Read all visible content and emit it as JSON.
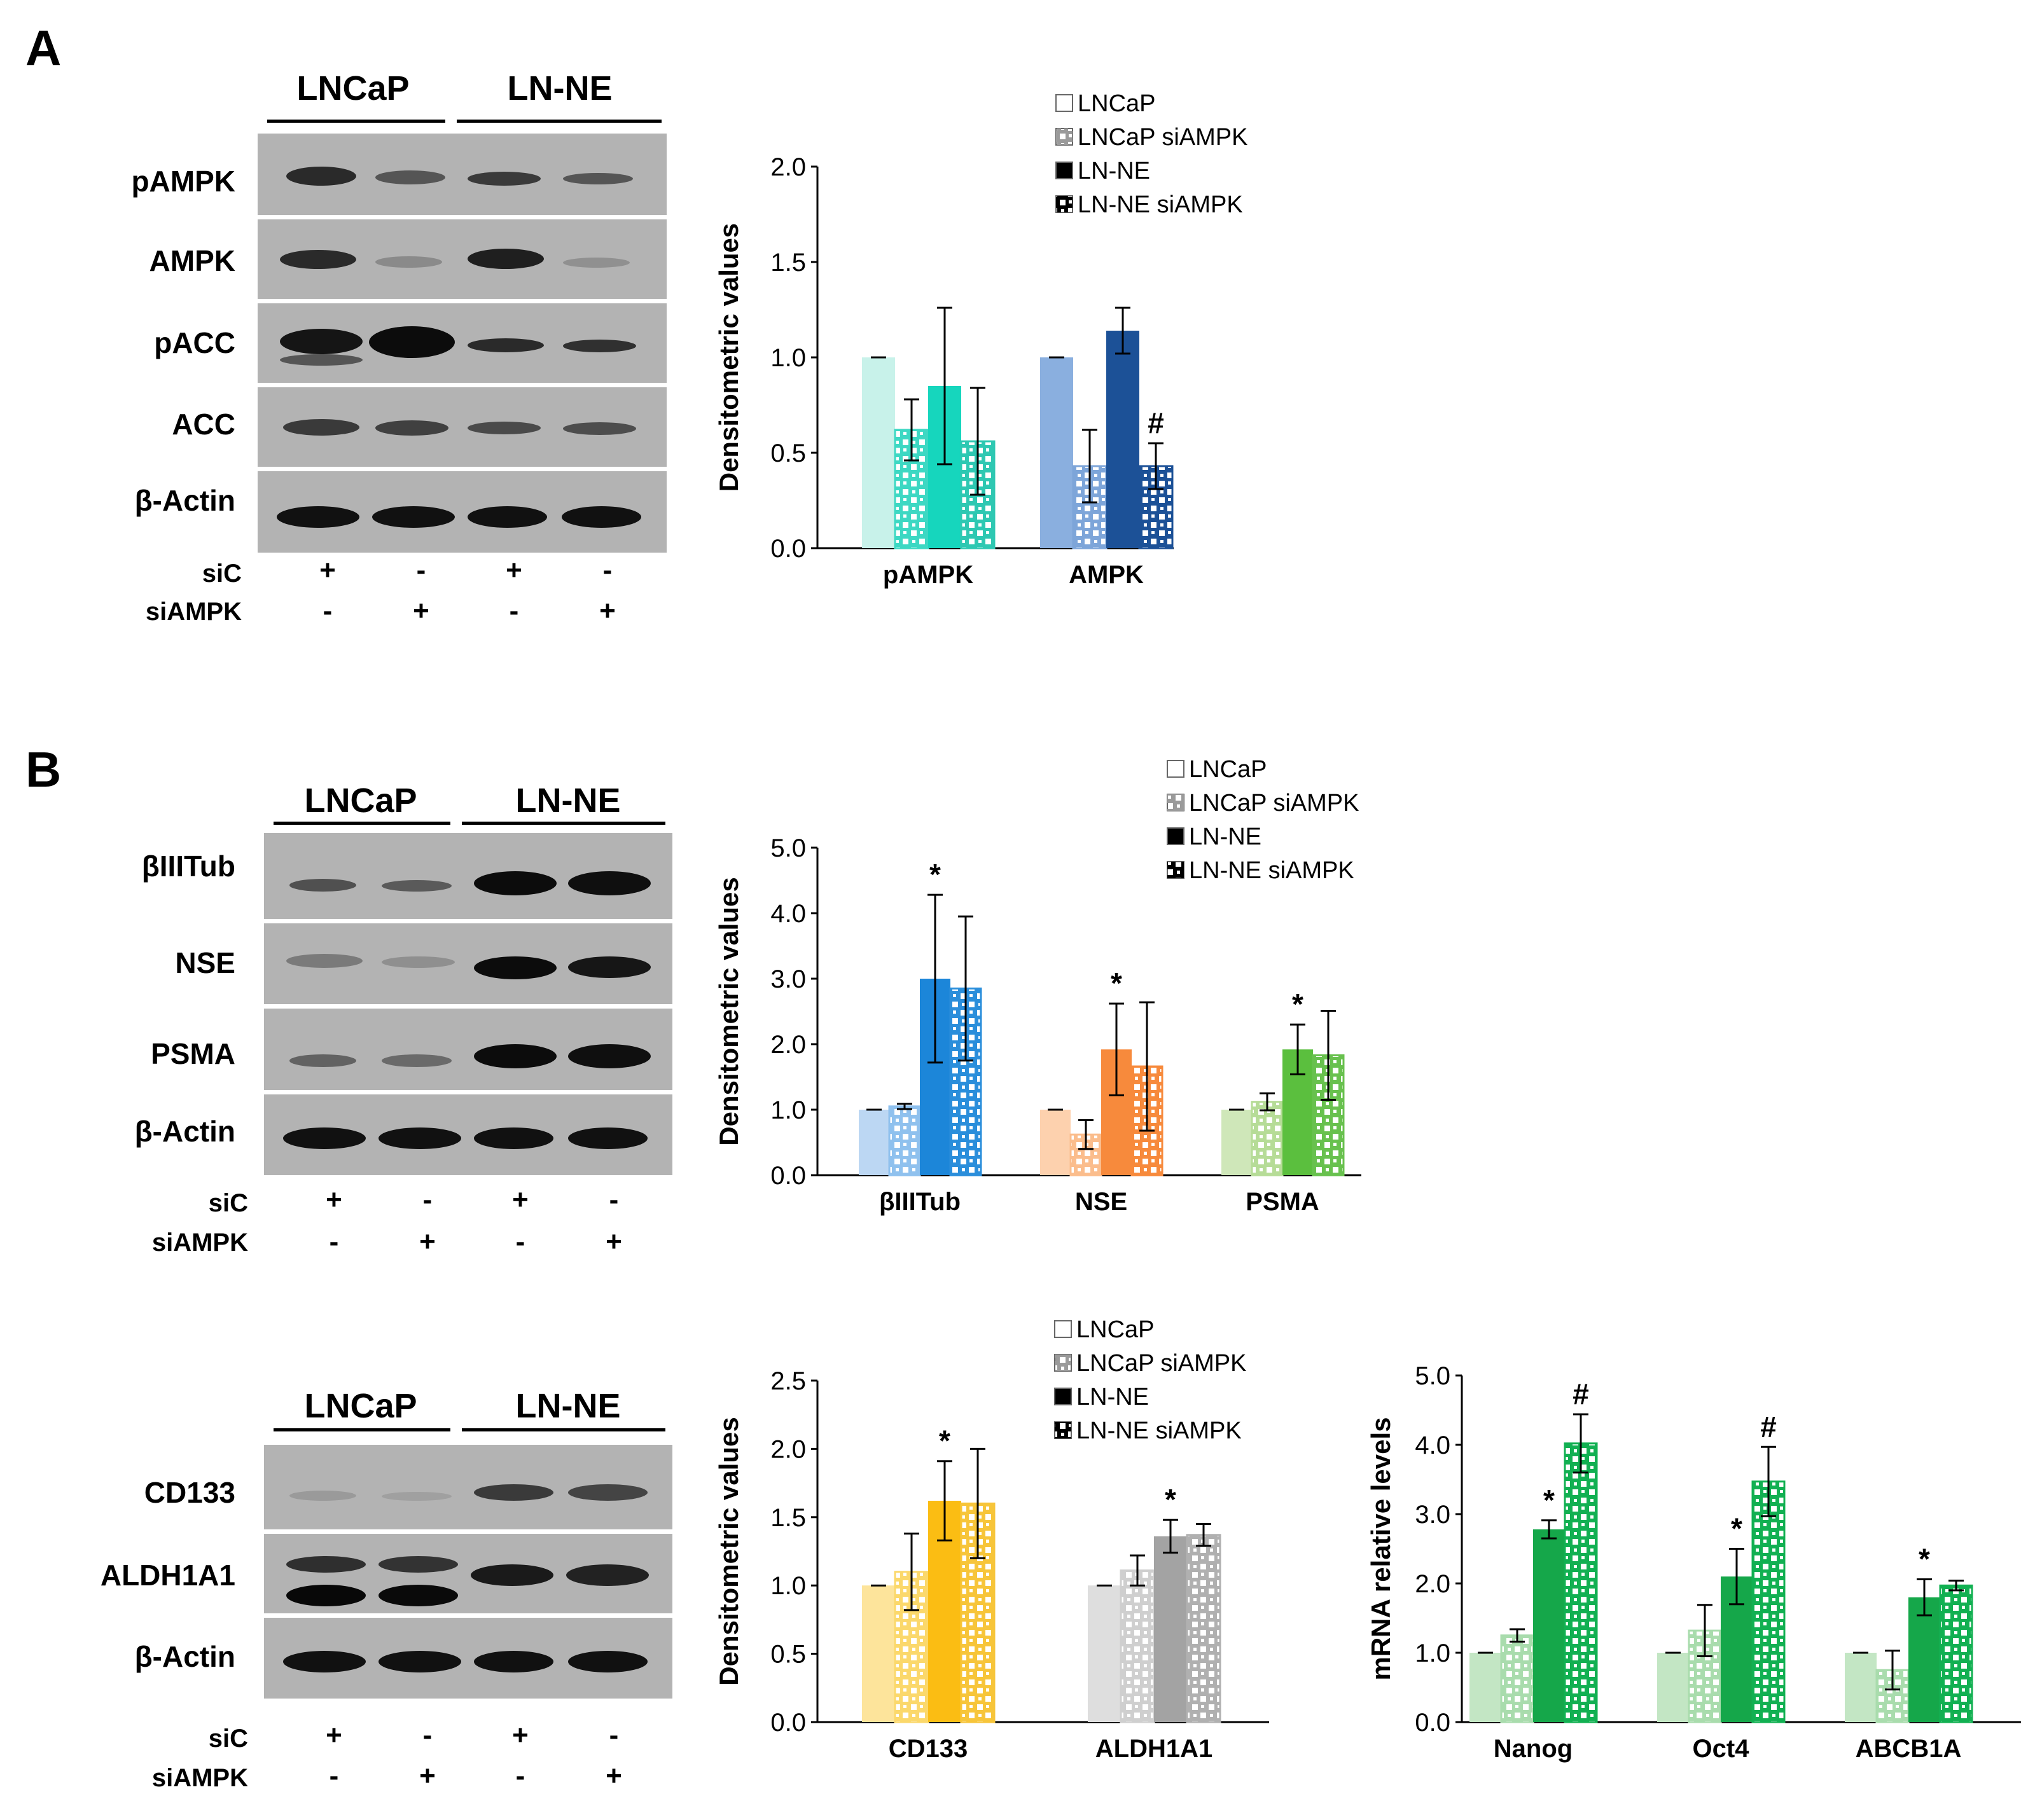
{
  "panels": {
    "a": "A",
    "b": "B"
  },
  "groups": {
    "lncap": "LNCaP",
    "lnne": "LN-NE"
  },
  "conditions": {
    "sic": "siC",
    "siampk": "siAMPK",
    "sic_signs": [
      "+",
      "-",
      "+",
      "-"
    ],
    "siampk_signs": [
      "-",
      "+",
      "-",
      "+"
    ]
  },
  "blots": {
    "a": [
      "pAMPK",
      "AMPK",
      "pACC",
      "ACC",
      "β-Actin"
    ],
    "b1": [
      "βIIITub",
      "NSE",
      "PSMA",
      "β-Actin"
    ],
    "b2": [
      "CD133",
      "ALDH1A1",
      "β-Actin"
    ]
  },
  "legend": [
    "LNCaP",
    "LNCaP siAMPK",
    "LN-NE",
    "LN-NE siAMPK"
  ],
  "chart_data": [
    {
      "id": "chartA",
      "type": "bar",
      "ylabel": "Densitometric values",
      "ylim": [
        0,
        2.0
      ],
      "yticks": [
        "0.0",
        "0.5",
        "1.0",
        "1.5",
        "2.0"
      ],
      "categories": [
        "pAMPK",
        "AMPK"
      ],
      "series_names": [
        "LNCaP",
        "LNCaP siAMPK",
        "LN-NE",
        "LN-NE siAMPK"
      ],
      "values": [
        [
          1.0,
          0.62,
          0.85,
          0.56
        ],
        [
          1.0,
          0.43,
          1.14,
          0.43
        ]
      ],
      "errors": [
        [
          0.0,
          0.16,
          0.41,
          0.28
        ],
        [
          0.0,
          0.19,
          0.12,
          0.12
        ]
      ],
      "colors": [
        [
          "#c8f2ea",
          "#3dd8c3",
          "#16d6bd",
          "#2ec8b2"
        ],
        [
          "#8aafdf",
          "#7da5d9",
          "#1c5197",
          "#1c5197"
        ]
      ],
      "annotations": [
        [],
        [
          "",
          "",
          "",
          "#"
        ]
      ]
    },
    {
      "id": "chartB1",
      "type": "bar",
      "ylabel": "Densitometric values",
      "ylim": [
        0,
        5.0
      ],
      "yticks": [
        "0.0",
        "1.0",
        "2.0",
        "3.0",
        "4.0",
        "5.0"
      ],
      "categories": [
        "βIIITub",
        "NSE",
        "PSMA"
      ],
      "series_names": [
        "LNCaP",
        "LNCaP siAMPK",
        "LN-NE",
        "LN-NE siAMPK"
      ],
      "values": [
        [
          1.0,
          1.05,
          3.0,
          2.85
        ],
        [
          1.0,
          0.62,
          1.92,
          1.66
        ],
        [
          1.0,
          1.12,
          1.92,
          1.83
        ]
      ],
      "errors": [
        [
          0.0,
          0.04,
          1.28,
          1.1
        ],
        [
          0.0,
          0.22,
          0.7,
          0.98
        ],
        [
          0.0,
          0.13,
          0.38,
          0.68
        ]
      ],
      "colors": [
        [
          "#bcd7f3",
          "#8fc1ee",
          "#1c86d9",
          "#2a8edb"
        ],
        [
          "#fdd1ae",
          "#fbbd8c",
          "#f78a3c",
          "#f78a3c"
        ],
        [
          "#cfe7b9",
          "#b6dc97",
          "#5bbf3e",
          "#68c14e"
        ]
      ],
      "annotations": [
        [
          "",
          "",
          "*",
          ""
        ],
        [
          "",
          "",
          "*",
          ""
        ],
        [
          "",
          "",
          "*",
          ""
        ]
      ]
    },
    {
      "id": "chartB2",
      "type": "bar",
      "ylabel": "Densitometric values",
      "ylim": [
        0,
        2.5
      ],
      "yticks": [
        "0.0",
        "0.5",
        "1.0",
        "1.5",
        "2.0",
        "2.5"
      ],
      "categories": [
        "CD133",
        "ALDH1A1"
      ],
      "series_names": [
        "LNCaP",
        "LNCaP siAMPK",
        "LN-NE",
        "LN-NE siAMPK"
      ],
      "values": [
        [
          1.0,
          1.1,
          1.62,
          1.6
        ],
        [
          1.0,
          1.11,
          1.36,
          1.37
        ]
      ],
      "errors": [
        [
          0.0,
          0.28,
          0.29,
          0.4
        ],
        [
          0.0,
          0.11,
          0.12,
          0.08
        ]
      ],
      "colors": [
        [
          "#fde49b",
          "#fbd86b",
          "#fbbd13",
          "#f7c53a"
        ],
        [
          "#dedede",
          "#cfcfcf",
          "#a3a3a3",
          "#b0b0b0"
        ]
      ],
      "annotations": [
        [
          "",
          "",
          "*",
          ""
        ],
        [
          "",
          "",
          "*",
          ""
        ]
      ]
    },
    {
      "id": "chartB3",
      "type": "bar",
      "ylabel": "mRNA relative levels",
      "ylim": [
        0,
        5.0
      ],
      "yticks": [
        "0.0",
        "1.0",
        "2.0",
        "3.0",
        "4.0",
        "5.0"
      ],
      "categories": [
        "Nanog",
        "Oct4",
        "ABCB1A"
      ],
      "series_names": [
        "LNCaP",
        "LNCaP siAMPK",
        "LN-NE",
        "LN-NE siAMPK"
      ],
      "values": [
        [
          1.0,
          1.25,
          2.78,
          4.02
        ],
        [
          1.0,
          1.32,
          2.1,
          3.47
        ],
        [
          1.0,
          0.75,
          1.8,
          1.97
        ]
      ],
      "errors": [
        [
          0.0,
          0.09,
          0.13,
          0.42
        ],
        [
          0.0,
          0.37,
          0.4,
          0.5
        ],
        [
          0.0,
          0.28,
          0.26,
          0.07
        ]
      ],
      "colors": [
        [
          "#c3e6c4",
          "#a9dcad",
          "#15a74a",
          "#12b052"
        ],
        [
          "#c3e6c4",
          "#a9dcad",
          "#15a74a",
          "#12b052"
        ],
        [
          "#c3e6c4",
          "#a9dcad",
          "#15a74a",
          "#12b052"
        ]
      ],
      "annotations": [
        [
          "",
          "",
          "*",
          "#"
        ],
        [
          "",
          "",
          "*",
          "#"
        ],
        [
          "",
          "",
          "*",
          ""
        ]
      ]
    }
  ]
}
